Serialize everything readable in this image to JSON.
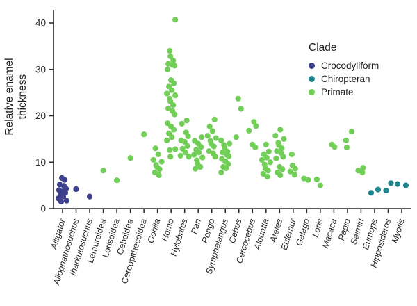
{
  "figure": {
    "ylabel": "Relative enamel\nthickness",
    "legend": {
      "title": "Clade",
      "items": [
        {
          "label": "Crocodyliform",
          "color": "#3B3F8C"
        },
        {
          "label": "Chiropteran",
          "color": "#1F858D"
        },
        {
          "label": "Primate",
          "color": "#71CE57"
        }
      ]
    }
  },
  "chart_data": {
    "type": "scatter",
    "subtype": "jittered-strip-plot",
    "title": "",
    "xlabel": "",
    "ylabel": "Relative enamel thickness",
    "ylim": [
      0,
      42
    ],
    "yticks": [
      0,
      10,
      20,
      30,
      40
    ],
    "grid": false,
    "legend_position": "upper-right",
    "legend_title": "Clade",
    "clade_colors": {
      "Crocodyliform": "#3B3F8C",
      "Chiropteran": "#1F858D",
      "Primate": "#71CE57"
    },
    "categories": [
      {
        "name": "Alligator",
        "italic": true,
        "clade": "Crocodyliform",
        "values": [
          6.6,
          6.2,
          5.2,
          4.9,
          4.3,
          4.0,
          3.7,
          3.4,
          3.1,
          2.6,
          2.2,
          1.7,
          1.5
        ]
      },
      {
        "name": "Allognathosuchus",
        "italic": true,
        "clade": "Crocodyliform",
        "values": [
          4.2
        ]
      },
      {
        "name": "Iharkutosuchus",
        "italic": true,
        "clade": "Crocodyliform",
        "values": [
          2.6
        ]
      },
      {
        "name": "Lemuroidea",
        "italic": false,
        "clade": "Primate",
        "values": [
          8.2
        ]
      },
      {
        "name": "Lorisoidea",
        "italic": false,
        "clade": "Primate",
        "values": [
          6.1
        ]
      },
      {
        "name": "Ceboidea",
        "italic": false,
        "clade": "Primate",
        "values": [
          10.9
        ]
      },
      {
        "name": "Cercopithecoidea",
        "italic": false,
        "clade": "Primate",
        "values": [
          16.0
        ]
      },
      {
        "name": "Gorilla",
        "italic": true,
        "clade": "Primate",
        "values": [
          13.0,
          11.7,
          10.5,
          10.1,
          9.4,
          9.0,
          8.5,
          7.8,
          7.2
        ]
      },
      {
        "name": "Homo",
        "italic": true,
        "clade": "Primate",
        "values": [
          40.7,
          34.0,
          32.8,
          31.9,
          31.2,
          31.0,
          30.8,
          30.0,
          27.7,
          27.0,
          26.3,
          25.5,
          24.8,
          24.4,
          23.7,
          23.1,
          22.3,
          21.6,
          21.0,
          20.3,
          18.4,
          17.7,
          17.0,
          16.2,
          15.4,
          14.7,
          12.8,
          12.6,
          11.2
        ]
      },
      {
        "name": "Hylobates",
        "italic": true,
        "clade": "Primate",
        "values": [
          19.0,
          18.3,
          16.4,
          15.6,
          14.7,
          14.4,
          13.5,
          12.9,
          12.1,
          11.4,
          11.2
        ]
      },
      {
        "name": "Pan",
        "italic": true,
        "clade": "Primate",
        "values": [
          15.4,
          14.6,
          14.0,
          13.3,
          12.7,
          12.1,
          11.6,
          11.0,
          10.4,
          9.7,
          9.0,
          8.6
        ]
      },
      {
        "name": "Pongo",
        "italic": true,
        "clade": "Primate",
        "values": [
          19.2,
          17.7,
          16.7,
          15.7,
          15.2,
          14.6,
          14.0,
          13.4,
          12.4,
          11.9,
          11.2
        ]
      },
      {
        "name": "Symphalangus",
        "italic": true,
        "clade": "Primate",
        "values": [
          14.7,
          14.0,
          13.7,
          13.2,
          12.3,
          12.1,
          11.6,
          11.3,
          10.7,
          10.2,
          9.6,
          9.0,
          8.7,
          7.8
        ]
      },
      {
        "name": "Cebus",
        "italic": true,
        "clade": "Primate",
        "values": [
          23.7,
          21.5,
          15.4
        ]
      },
      {
        "name": "Cercocebus",
        "italic": true,
        "clade": "Primate",
        "values": [
          18.7,
          17.8,
          16.8,
          13.8,
          13.2
        ]
      },
      {
        "name": "Alouatta",
        "italic": true,
        "clade": "Primate",
        "values": [
          13.8,
          12.3,
          11.7,
          11.0,
          10.5,
          10.0,
          9.5,
          8.7,
          8.2,
          7.5,
          6.9
        ]
      },
      {
        "name": "Ateles",
        "italic": true,
        "clade": "Primate",
        "values": [
          17.0,
          15.7,
          15.0,
          14.2,
          13.7,
          13.0,
          12.4,
          12.0,
          11.2,
          10.8,
          9.0,
          8.5,
          7.8,
          7.2
        ]
      },
      {
        "name": "Eulemur",
        "italic": true,
        "clade": "Primate",
        "values": [
          11.7,
          9.3,
          8.6,
          8.0,
          7.3
        ]
      },
      {
        "name": "Galago",
        "italic": true,
        "clade": "Primate",
        "values": [
          6.5,
          6.2
        ]
      },
      {
        "name": "Loris",
        "italic": true,
        "clade": "Primate",
        "values": [
          6.3,
          5.0
        ]
      },
      {
        "name": "Macaca",
        "italic": true,
        "clade": "Primate",
        "values": [
          13.8,
          13.3
        ]
      },
      {
        "name": "Papio",
        "italic": true,
        "clade": "Primate",
        "values": [
          16.6,
          14.7,
          13.2
        ]
      },
      {
        "name": "Saimiri",
        "italic": true,
        "clade": "Primate",
        "values": [
          8.8,
          8.2,
          7.8
        ]
      },
      {
        "name": "Eumops",
        "italic": true,
        "clade": "Chiropteran",
        "values": [
          4.1,
          3.4
        ]
      },
      {
        "name": "Hipposideros",
        "italic": true,
        "clade": "Chiropteran",
        "values": [
          5.5,
          3.9
        ]
      },
      {
        "name": "Myotis",
        "italic": true,
        "clade": "Chiropteran",
        "values": [
          5.3,
          5.0
        ]
      }
    ]
  }
}
